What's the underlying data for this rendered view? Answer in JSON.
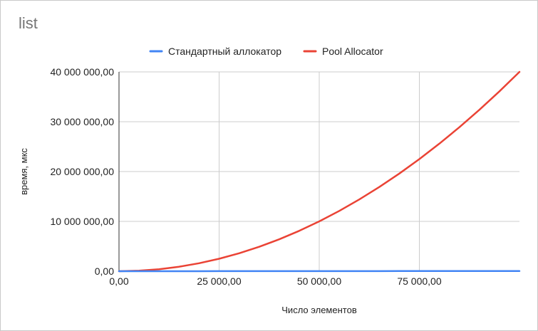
{
  "chart_data": {
    "type": "line",
    "title": "list",
    "xlabel": "Число элементов",
    "ylabel": "время, мкс",
    "xlim": [
      0,
      100000
    ],
    "ylim": [
      0,
      40000000
    ],
    "x_ticks": [
      0,
      25000,
      50000,
      75000
    ],
    "x_tick_labels": [
      "0,00",
      "25 000,00",
      "50 000,00",
      "75 000,00"
    ],
    "y_ticks": [
      0,
      10000000,
      20000000,
      30000000,
      40000000
    ],
    "y_tick_labels": [
      "0,00",
      "10 000 000,00",
      "20 000 000,00",
      "30 000 000,00",
      "40 000 000,00"
    ],
    "grid": true,
    "legend_position": "top",
    "x": [
      0,
      5000,
      10000,
      15000,
      20000,
      25000,
      30000,
      35000,
      40000,
      45000,
      50000,
      55000,
      60000,
      65000,
      70000,
      75000,
      80000,
      85000,
      90000,
      95000,
      100000
    ],
    "series": [
      {
        "name": "Стандартный аллокатор",
        "color": "#4285f4",
        "values": [
          0,
          2000,
          4000,
          6000,
          8000,
          10000,
          12000,
          14000,
          16000,
          18000,
          20000,
          22000,
          24000,
          26000,
          28000,
          30000,
          32000,
          34000,
          36000,
          38000,
          40000
        ]
      },
      {
        "name": "Pool Allocator",
        "color": "#ea4335",
        "values": [
          0,
          100000,
          400000,
          900000,
          1600000,
          2500000,
          3600000,
          4900000,
          6400000,
          8100000,
          10000000,
          12100000,
          14400000,
          16900000,
          19600000,
          22500000,
          25600000,
          28900000,
          32400000,
          36100000,
          40000000
        ]
      }
    ]
  }
}
